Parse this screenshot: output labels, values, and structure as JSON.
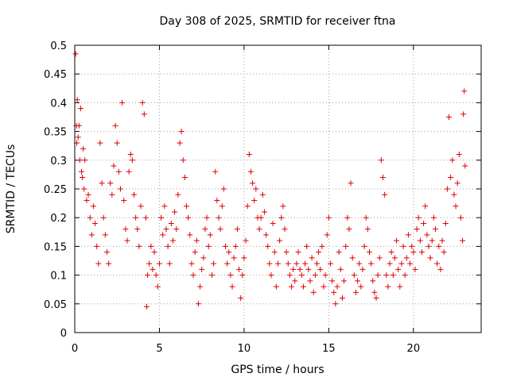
{
  "chart_data": {
    "type": "scatter",
    "title": "Day 308 of 2025, SRMTID for receiver ftna",
    "xlabel": "GPS time / hours",
    "ylabel": "SRMTID / TECUs",
    "xlim": [
      0,
      24
    ],
    "ylim": [
      0,
      0.5
    ],
    "xticks": [
      "0",
      "5",
      "10",
      "15",
      "20"
    ],
    "xtick_values": [
      0,
      5,
      10,
      15,
      20
    ],
    "yticks": [
      "0",
      "0.05",
      "0.1",
      "0.15",
      "0.2",
      "0.25",
      "0.3",
      "0.35",
      "0.4",
      "0.45",
      "0.5"
    ],
    "ytick_values": [
      0,
      0.05,
      0.1,
      0.15,
      0.2,
      0.25,
      0.3,
      0.35,
      0.4,
      0.45,
      0.5
    ],
    "grid": true,
    "marker": "plus",
    "color": "#e00000",
    "series": [
      {
        "points": [
          [
            0.05,
            0.485
          ],
          [
            0.1,
            0.36
          ],
          [
            0.12,
            0.33
          ],
          [
            0.15,
            0.405
          ],
          [
            0.2,
            0.34
          ],
          [
            0.25,
            0.36
          ],
          [
            0.3,
            0.3
          ],
          [
            0.35,
            0.39
          ],
          [
            0.4,
            0.28
          ],
          [
            0.45,
            0.27
          ],
          [
            0.5,
            0.32
          ],
          [
            0.55,
            0.25
          ],
          [
            0.6,
            0.3
          ],
          [
            0.7,
            0.23
          ],
          [
            0.8,
            0.24
          ],
          [
            0.9,
            0.2
          ],
          [
            1.0,
            0.17
          ],
          [
            1.1,
            0.22
          ],
          [
            1.2,
            0.19
          ],
          [
            1.3,
            0.15
          ],
          [
            1.4,
            0.12
          ],
          [
            1.5,
            0.33
          ],
          [
            1.6,
            0.26
          ],
          [
            1.7,
            0.2
          ],
          [
            1.8,
            0.17
          ],
          [
            1.9,
            0.14
          ],
          [
            2.0,
            0.12
          ],
          [
            2.1,
            0.26
          ],
          [
            2.2,
            0.24
          ],
          [
            2.3,
            0.29
          ],
          [
            2.4,
            0.36
          ],
          [
            2.5,
            0.33
          ],
          [
            2.6,
            0.28
          ],
          [
            2.7,
            0.25
          ],
          [
            2.8,
            0.4
          ],
          [
            2.9,
            0.23
          ],
          [
            3.0,
            0.18
          ],
          [
            3.1,
            0.16
          ],
          [
            3.2,
            0.28
          ],
          [
            3.3,
            0.31
          ],
          [
            3.4,
            0.3
          ],
          [
            3.5,
            0.24
          ],
          [
            3.6,
            0.2
          ],
          [
            3.7,
            0.18
          ],
          [
            3.8,
            0.15
          ],
          [
            3.9,
            0.22
          ],
          [
            4.0,
            0.4
          ],
          [
            4.1,
            0.38
          ],
          [
            4.2,
            0.2
          ],
          [
            4.25,
            0.045
          ],
          [
            4.3,
            0.1
          ],
          [
            4.4,
            0.12
          ],
          [
            4.5,
            0.15
          ],
          [
            4.6,
            0.11
          ],
          [
            4.7,
            0.14
          ],
          [
            4.8,
            0.1
          ],
          [
            4.9,
            0.08
          ],
          [
            5.0,
            0.12
          ],
          [
            5.1,
            0.2
          ],
          [
            5.2,
            0.17
          ],
          [
            5.3,
            0.22
          ],
          [
            5.4,
            0.18
          ],
          [
            5.5,
            0.15
          ],
          [
            5.6,
            0.12
          ],
          [
            5.7,
            0.19
          ],
          [
            5.8,
            0.16
          ],
          [
            5.9,
            0.21
          ],
          [
            6.0,
            0.18
          ],
          [
            6.1,
            0.24
          ],
          [
            6.2,
            0.33
          ],
          [
            6.3,
            0.35
          ],
          [
            6.4,
            0.3
          ],
          [
            6.5,
            0.27
          ],
          [
            6.6,
            0.22
          ],
          [
            6.7,
            0.2
          ],
          [
            6.8,
            0.17
          ],
          [
            6.9,
            0.12
          ],
          [
            7.0,
            0.1
          ],
          [
            7.1,
            0.14
          ],
          [
            7.2,
            0.16
          ],
          [
            7.3,
            0.05
          ],
          [
            7.4,
            0.08
          ],
          [
            7.5,
            0.11
          ],
          [
            7.6,
            0.13
          ],
          [
            7.7,
            0.18
          ],
          [
            7.8,
            0.2
          ],
          [
            7.9,
            0.15
          ],
          [
            8.0,
            0.17
          ],
          [
            8.1,
            0.1
          ],
          [
            8.2,
            0.12
          ],
          [
            8.3,
            0.28
          ],
          [
            8.4,
            0.23
          ],
          [
            8.5,
            0.2
          ],
          [
            8.6,
            0.18
          ],
          [
            8.7,
            0.22
          ],
          [
            8.8,
            0.25
          ],
          [
            8.9,
            0.15
          ],
          [
            9.0,
            0.12
          ],
          [
            9.1,
            0.14
          ],
          [
            9.2,
            0.1
          ],
          [
            9.3,
            0.08
          ],
          [
            9.4,
            0.13
          ],
          [
            9.5,
            0.15
          ],
          [
            9.6,
            0.18
          ],
          [
            9.7,
            0.11
          ],
          [
            9.8,
            0.06
          ],
          [
            9.9,
            0.1
          ],
          [
            10.0,
            0.13
          ],
          [
            10.1,
            0.16
          ],
          [
            10.2,
            0.22
          ],
          [
            10.3,
            0.31
          ],
          [
            10.4,
            0.28
          ],
          [
            10.5,
            0.26
          ],
          [
            10.6,
            0.23
          ],
          [
            10.7,
            0.25
          ],
          [
            10.8,
            0.2
          ],
          [
            10.9,
            0.18
          ],
          [
            11.0,
            0.2
          ],
          [
            11.1,
            0.24
          ],
          [
            11.2,
            0.21
          ],
          [
            11.3,
            0.17
          ],
          [
            11.4,
            0.15
          ],
          [
            11.5,
            0.12
          ],
          [
            11.6,
            0.1
          ],
          [
            11.7,
            0.19
          ],
          [
            11.8,
            0.14
          ],
          [
            11.9,
            0.08
          ],
          [
            12.0,
            0.12
          ],
          [
            12.1,
            0.16
          ],
          [
            12.2,
            0.2
          ],
          [
            12.3,
            0.22
          ],
          [
            12.4,
            0.18
          ],
          [
            12.5,
            0.14
          ],
          [
            12.6,
            0.12
          ],
          [
            12.7,
            0.1
          ],
          [
            12.8,
            0.08
          ],
          [
            12.9,
            0.11
          ],
          [
            13.0,
            0.09
          ],
          [
            13.1,
            0.12
          ],
          [
            13.2,
            0.14
          ],
          [
            13.3,
            0.11
          ],
          [
            13.4,
            0.1
          ],
          [
            13.5,
            0.08
          ],
          [
            13.6,
            0.12
          ],
          [
            13.7,
            0.15
          ],
          [
            13.8,
            0.11
          ],
          [
            13.9,
            0.09
          ],
          [
            14.0,
            0.13
          ],
          [
            14.1,
            0.07
          ],
          [
            14.2,
            0.1
          ],
          [
            14.3,
            0.12
          ],
          [
            14.4,
            0.14
          ],
          [
            14.5,
            0.11
          ],
          [
            14.6,
            0.15
          ],
          [
            14.7,
            0.08
          ],
          [
            14.8,
            0.1
          ],
          [
            14.9,
            0.17
          ],
          [
            15.0,
            0.2
          ],
          [
            15.1,
            0.12
          ],
          [
            15.2,
            0.09
          ],
          [
            15.3,
            0.07
          ],
          [
            15.4,
            0.05
          ],
          [
            15.5,
            0.08
          ],
          [
            15.6,
            0.14
          ],
          [
            15.7,
            0.11
          ],
          [
            15.8,
            0.06
          ],
          [
            15.9,
            0.09
          ],
          [
            16.0,
            0.15
          ],
          [
            16.1,
            0.2
          ],
          [
            16.2,
            0.18
          ],
          [
            16.3,
            0.26
          ],
          [
            16.4,
            0.13
          ],
          [
            16.5,
            0.1
          ],
          [
            16.6,
            0.07
          ],
          [
            16.7,
            0.09
          ],
          [
            16.8,
            0.12
          ],
          [
            16.9,
            0.08
          ],
          [
            17.0,
            0.11
          ],
          [
            17.1,
            0.15
          ],
          [
            17.2,
            0.2
          ],
          [
            17.3,
            0.18
          ],
          [
            17.4,
            0.14
          ],
          [
            17.5,
            0.12
          ],
          [
            17.6,
            0.09
          ],
          [
            17.7,
            0.07
          ],
          [
            17.8,
            0.06
          ],
          [
            17.9,
            0.1
          ],
          [
            18.0,
            0.13
          ],
          [
            18.1,
            0.3
          ],
          [
            18.2,
            0.27
          ],
          [
            18.3,
            0.24
          ],
          [
            18.4,
            0.1
          ],
          [
            18.5,
            0.08
          ],
          [
            18.6,
            0.12
          ],
          [
            18.7,
            0.14
          ],
          [
            18.8,
            0.1
          ],
          [
            18.9,
            0.13
          ],
          [
            19.0,
            0.16
          ],
          [
            19.1,
            0.11
          ],
          [
            19.2,
            0.08
          ],
          [
            19.3,
            0.12
          ],
          [
            19.4,
            0.15
          ],
          [
            19.5,
            0.1
          ],
          [
            19.6,
            0.13
          ],
          [
            19.7,
            0.17
          ],
          [
            19.8,
            0.12
          ],
          [
            19.9,
            0.15
          ],
          [
            20.0,
            0.14
          ],
          [
            20.1,
            0.11
          ],
          [
            20.2,
            0.18
          ],
          [
            20.3,
            0.2
          ],
          [
            20.4,
            0.16
          ],
          [
            20.5,
            0.14
          ],
          [
            20.6,
            0.19
          ],
          [
            20.7,
            0.22
          ],
          [
            20.8,
            0.17
          ],
          [
            20.9,
            0.15
          ],
          [
            21.0,
            0.13
          ],
          [
            21.1,
            0.16
          ],
          [
            21.2,
            0.2
          ],
          [
            21.3,
            0.18
          ],
          [
            21.4,
            0.12
          ],
          [
            21.5,
            0.15
          ],
          [
            21.6,
            0.11
          ],
          [
            21.7,
            0.16
          ],
          [
            21.8,
            0.14
          ],
          [
            21.9,
            0.19
          ],
          [
            22.0,
            0.25
          ],
          [
            22.1,
            0.375
          ],
          [
            22.2,
            0.27
          ],
          [
            22.3,
            0.3
          ],
          [
            22.4,
            0.24
          ],
          [
            22.5,
            0.22
          ],
          [
            22.6,
            0.26
          ],
          [
            22.7,
            0.31
          ],
          [
            22.8,
            0.2
          ],
          [
            22.9,
            0.16
          ],
          [
            22.95,
            0.38
          ],
          [
            23.0,
            0.42
          ],
          [
            23.05,
            0.29
          ]
        ]
      }
    ]
  }
}
